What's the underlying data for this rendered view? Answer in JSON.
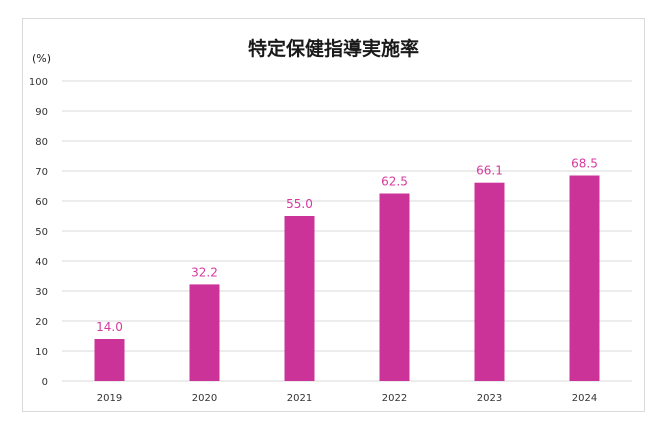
{
  "chart_data": {
    "type": "bar",
    "title": "特定保健指導実施率",
    "ylabel": "(%)",
    "xlabel": "",
    "categories": [
      "2019",
      "2020",
      "2021",
      "2022",
      "2023",
      "2024"
    ],
    "values": [
      14.0,
      32.2,
      55.0,
      62.5,
      66.1,
      68.5
    ],
    "data_labels": [
      "14.0",
      "32.2",
      "55.0",
      "62.5",
      "66.1",
      "68.5"
    ],
    "ylim": [
      0,
      100
    ],
    "yticks": [
      "0",
      "10",
      "20",
      "30",
      "40",
      "50",
      "60",
      "70",
      "80",
      "90",
      "100"
    ],
    "grid": true,
    "legend": "none",
    "colors": {
      "bar": "#cc3399",
      "label": "#d63ba0",
      "grid": "#d9d9d9"
    }
  }
}
